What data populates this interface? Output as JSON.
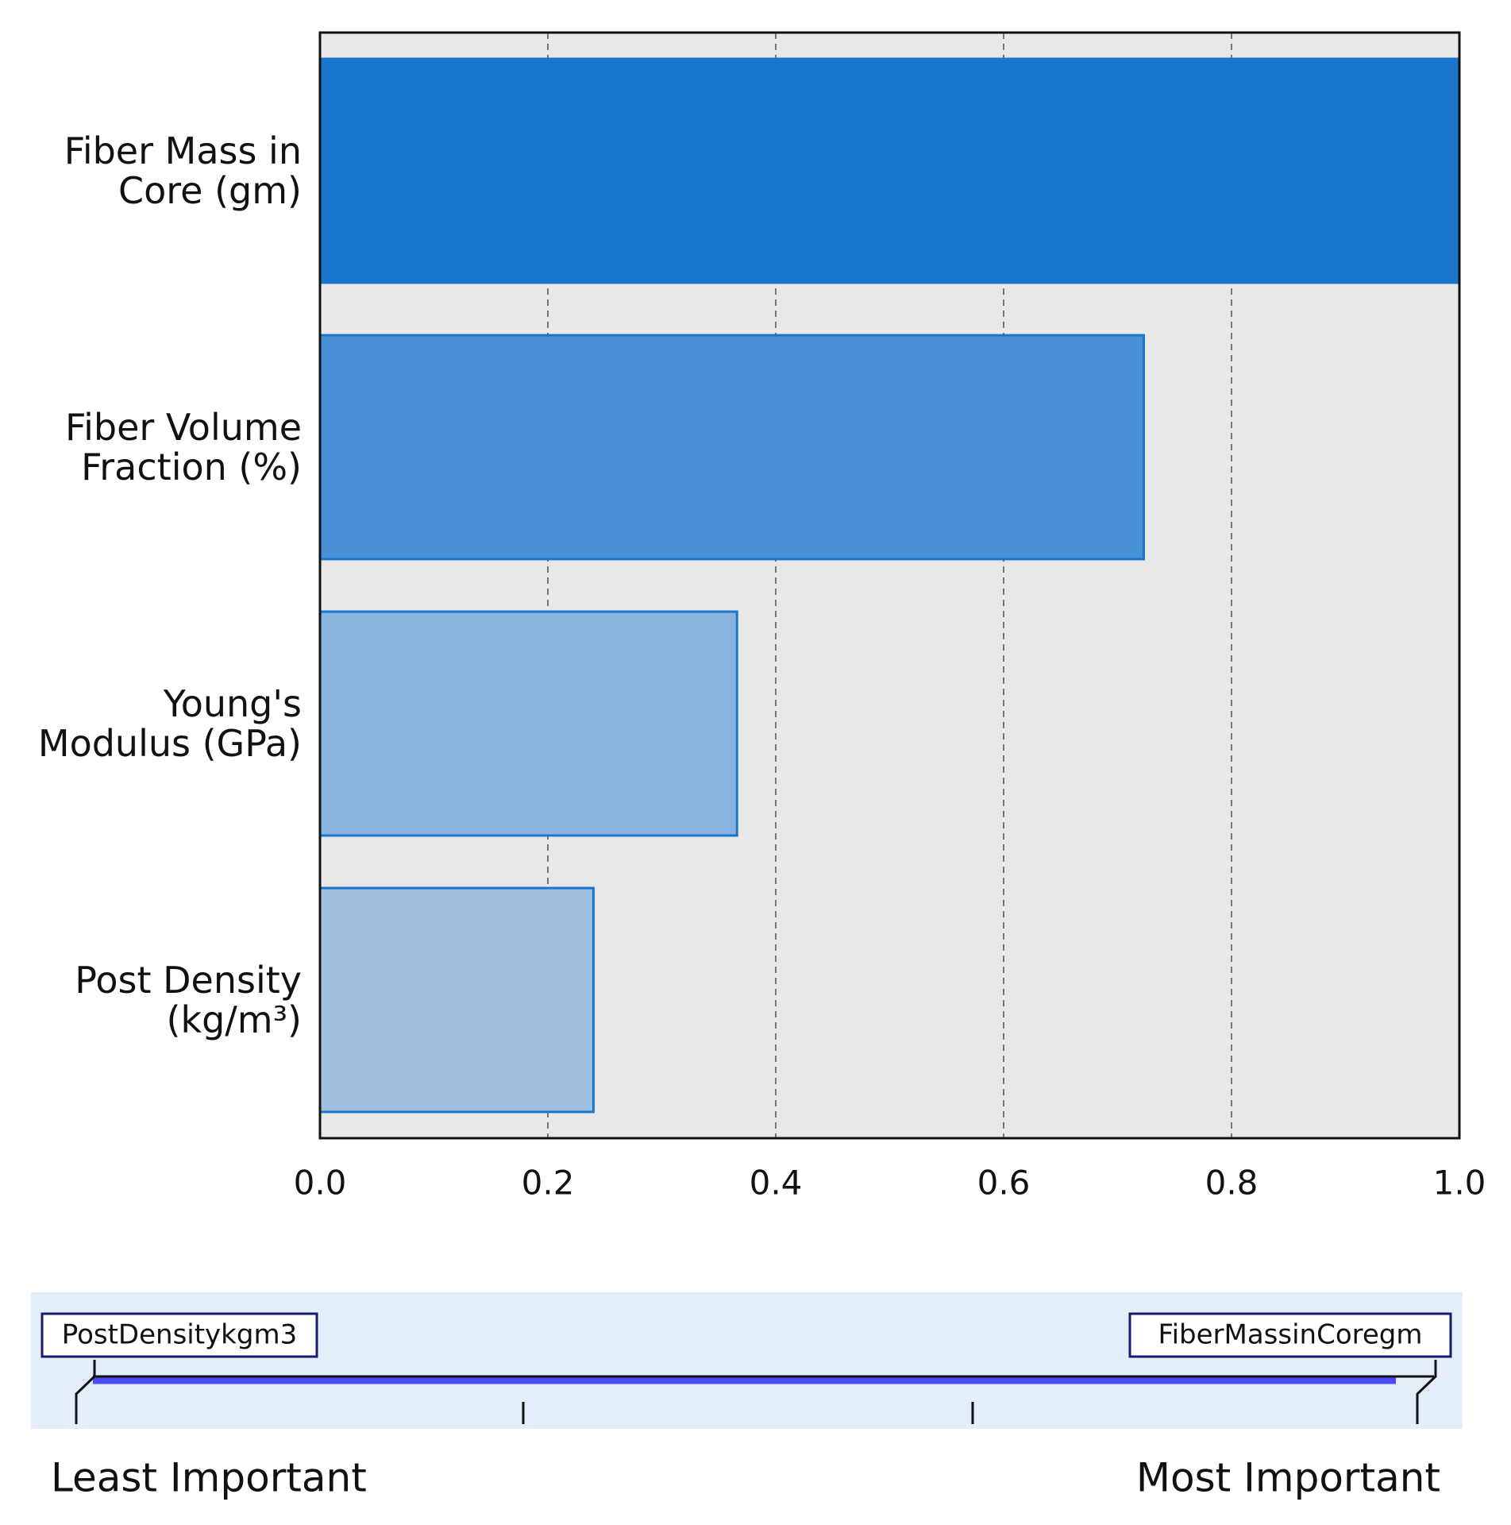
{
  "chart_data": {
    "type": "hbar",
    "categories": [
      "Fiber Mass in Core (gm)",
      "Fiber Volume Fraction  (%)",
      "Young's Modulus (GPa)",
      "Post Density (kg/m³)"
    ],
    "values": [
      1.0,
      0.723,
      0.366,
      0.24
    ],
    "colors": [
      "#1a75cc",
      "#4a90d6",
      "#8ab4de",
      "#a0c0e0"
    ],
    "edge_color": "#1a75cc",
    "xlim": [
      0,
      1
    ],
    "xticks": [
      {
        "value": 0,
        "label": "0.0"
      },
      0.2,
      0.4,
      0.6,
      0.8,
      {
        "value": 1,
        "label": "1.0"
      }
    ],
    "grid": true
  },
  "importance_scale": {
    "least_item": "PostDensitykgm3",
    "most_item": "FiberMassinCoregm",
    "least_label": "Least Important",
    "most_label": "Most Important"
  }
}
